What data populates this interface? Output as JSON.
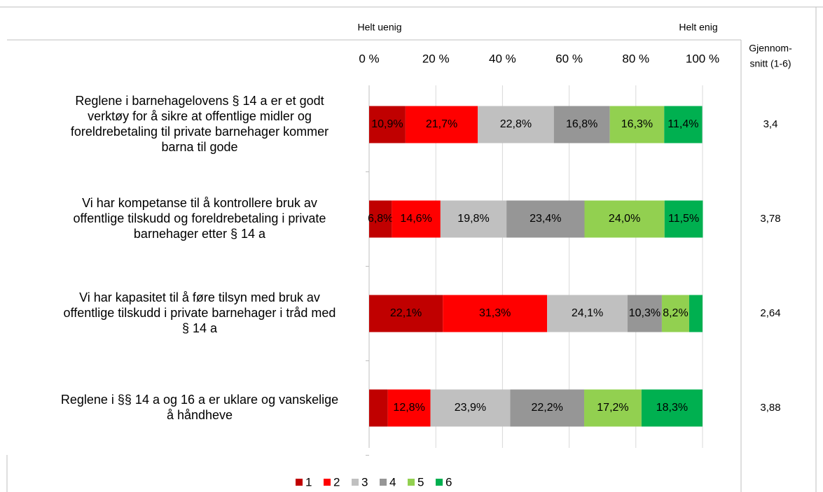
{
  "chart_data": {
    "type": "stacked_bar_horizontal",
    "header_left": "Helt uenig",
    "header_right": "Helt enig",
    "average_header": [
      "Gjennom-",
      "snitt (1-6)"
    ],
    "categories": [
      [
        "Reglene i barnehagelovens § 14 a er et godt",
        "verktøy for å sikre at offentlige midler og",
        "foreldrebetaling til private barnehager kommer",
        "barna til gode"
      ],
      [
        "Vi har kompetanse til å kontrollere bruk av",
        "offentlige tilskudd og foreldrebetaling i private",
        "barnehager etter § 14 a"
      ],
      [
        "Vi har kapasitet til å føre tilsyn med bruk av",
        "offentlige tilskudd i private barnehager i tråd med",
        "§ 14 a"
      ],
      [
        "Reglene i §§ 14 a og 16 a er uklare og vanskelige",
        "å håndheve"
      ]
    ],
    "averages": [
      "3,4",
      "3,78",
      "2,64",
      "3,88"
    ],
    "series": [
      {
        "name": "1",
        "color": "#c00000",
        "values": [
          10.9,
          6.8,
          22.1,
          5.6
        ],
        "value_labels": [
          "10,9%",
          "6,8%",
          "22,1%",
          null
        ]
      },
      {
        "name": "2",
        "color": "#ff0000",
        "values": [
          21.7,
          14.6,
          31.3,
          12.8
        ],
        "value_labels": [
          "21,7%",
          "14,6%",
          "31,3%",
          "12,8%"
        ]
      },
      {
        "name": "3",
        "color": "#c0c0c0",
        "values": [
          22.8,
          19.8,
          24.1,
          23.9
        ],
        "value_labels": [
          "22,8%",
          "19,8%",
          "24,1%",
          "23,9%"
        ]
      },
      {
        "name": "4",
        "color": "#969696",
        "values": [
          16.8,
          23.4,
          10.3,
          22.2
        ],
        "value_labels": [
          "16,8%",
          "23,4%",
          "10,3%",
          "22,2%"
        ]
      },
      {
        "name": "5",
        "color": "#92d050",
        "values": [
          16.3,
          24.0,
          8.2,
          17.2
        ],
        "value_labels": [
          "16,3%",
          "24,0%",
          "8,2%",
          "17,2%"
        ]
      },
      {
        "name": "6",
        "color": "#00b050",
        "values": [
          11.4,
          11.5,
          4.0,
          18.3
        ],
        "value_labels": [
          "11,4%",
          "11,5%",
          null,
          "18,3%"
        ]
      }
    ],
    "xlim": [
      0,
      100
    ],
    "xticks": [
      {
        "value": 0,
        "label": "0 %"
      },
      {
        "value": 20,
        "label": "20 %"
      },
      {
        "value": 40,
        "label": "40 %"
      },
      {
        "value": 60,
        "label": "60 %"
      },
      {
        "value": 80,
        "label": "80 %"
      },
      {
        "value": 100,
        "label": "100 %"
      }
    ],
    "grid": true
  }
}
